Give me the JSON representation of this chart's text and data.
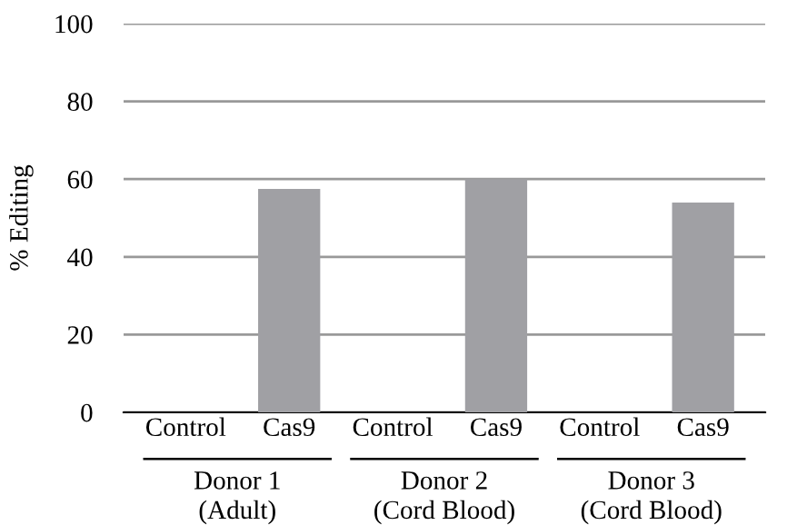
{
  "chart_data": {
    "type": "bar",
    "categories": [
      "Control",
      "Cas9",
      "Control",
      "Cas9",
      "Control",
      "Cas9"
    ],
    "series": [
      {
        "color": "#a0a0a4",
        "values": [
          0,
          57.5,
          0,
          60,
          0,
          54
        ]
      }
    ],
    "ylabel": "% Editing",
    "ylim": [
      0,
      100
    ],
    "yticks": [
      0,
      20,
      40,
      60,
      80,
      100
    ],
    "grid": "y",
    "annotations": [
      "Donor 1\n(Adult)",
      "Donor 2\n(Cord Blood)",
      "Donor 3\n(Cord Blood)"
    ]
  }
}
